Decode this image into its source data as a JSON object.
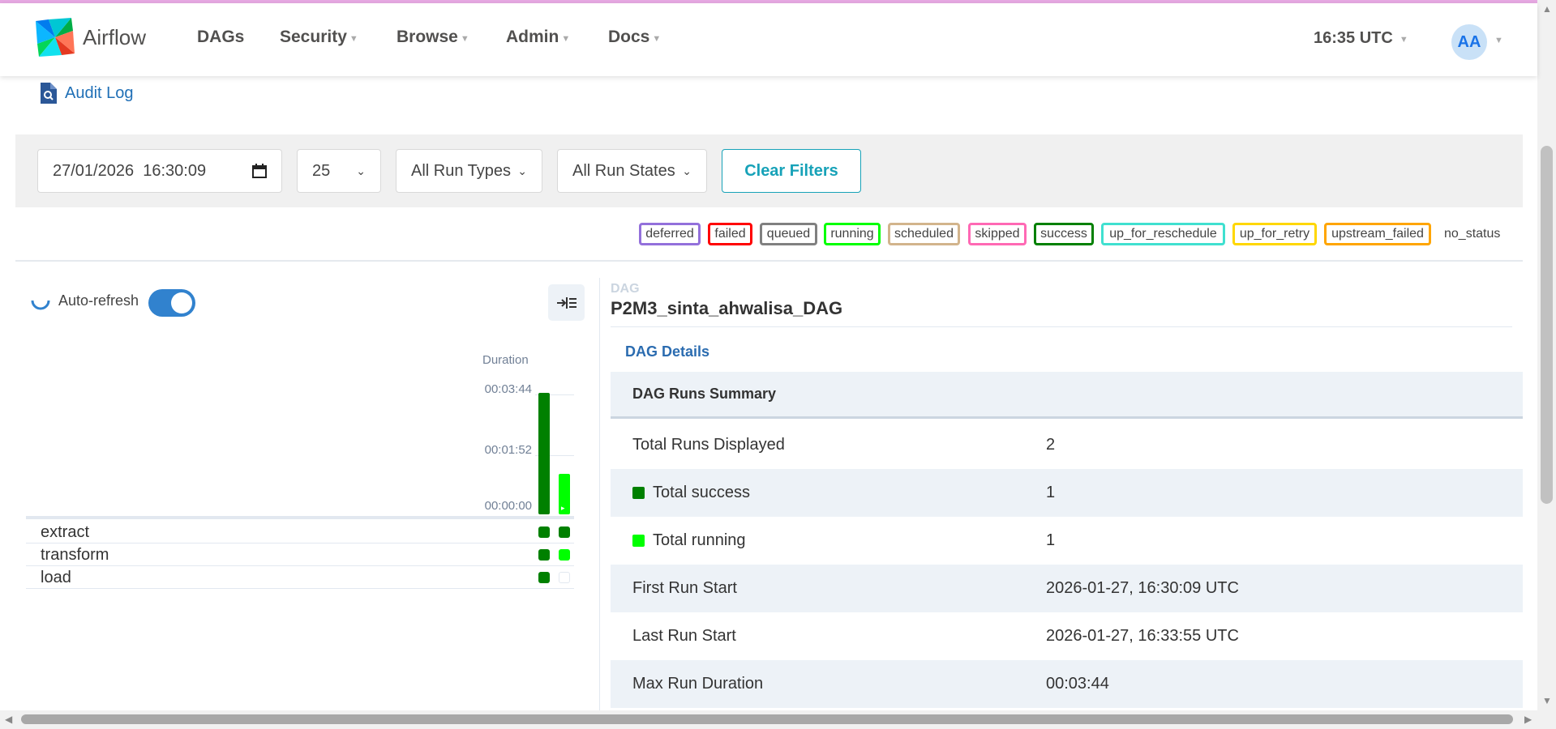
{
  "navbar": {
    "brand": "Airflow",
    "items": [
      {
        "label": "DAGs",
        "dropdown": false
      },
      {
        "label": "Security",
        "dropdown": true
      },
      {
        "label": "Browse",
        "dropdown": true
      },
      {
        "label": "Admin",
        "dropdown": true
      },
      {
        "label": "Docs",
        "dropdown": true
      }
    ],
    "clock": "16:35 UTC",
    "avatar": "AA"
  },
  "audit_log": {
    "label": "Audit Log"
  },
  "filters": {
    "base_date": "27/01/2026  16:30:09",
    "num_runs": "25",
    "run_type": "All Run Types",
    "run_state": "All Run States",
    "clear_label": "Clear Filters"
  },
  "legend": [
    {
      "label": "deferred",
      "color": "#9370db"
    },
    {
      "label": "failed",
      "color": "#ff0000"
    },
    {
      "label": "queued",
      "color": "#808080"
    },
    {
      "label": "running",
      "color": "#00ff00"
    },
    {
      "label": "scheduled",
      "color": "#d2b48c"
    },
    {
      "label": "skipped",
      "color": "#ff69b4"
    },
    {
      "label": "success",
      "color": "#008000"
    },
    {
      "label": "up_for_reschedule",
      "color": "#40e0d0"
    },
    {
      "label": "up_for_retry",
      "color": "#ffd700"
    },
    {
      "label": "upstream_failed",
      "color": "#ffa500"
    },
    {
      "label": "no_status",
      "color": ""
    }
  ],
  "grid": {
    "auto_refresh_label": "Auto-refresh",
    "auto_refresh_on": true,
    "duration_label": "Duration",
    "duration_ticks": [
      "00:03:44",
      "00:01:52",
      "00:00:00"
    ],
    "run_bars": [
      {
        "duration_fraction": 1.0,
        "state": "success",
        "color": "#008000"
      },
      {
        "duration_fraction": 0.33,
        "state": "running",
        "color": "#00ff00"
      }
    ],
    "tasks": [
      {
        "name": "extract",
        "states": [
          "success",
          "success"
        ]
      },
      {
        "name": "transform",
        "states": [
          "success",
          "running"
        ]
      },
      {
        "name": "load",
        "states": [
          "success",
          "none"
        ]
      }
    ]
  },
  "details": {
    "section_label": "DAG",
    "dag_id": "P2M3_sinta_ahwalisa_DAG",
    "tab": "DAG Details",
    "table_header": "DAG Runs Summary",
    "rows": [
      {
        "key": "Total Runs Displayed",
        "value": "2",
        "swatch": ""
      },
      {
        "key": "Total success",
        "value": "1",
        "swatch": "#008000"
      },
      {
        "key": "Total running",
        "value": "1",
        "swatch": "#00ff00"
      },
      {
        "key": "First Run Start",
        "value": "2026-01-27, 16:30:09 UTC",
        "swatch": ""
      },
      {
        "key": "Last Run Start",
        "value": "2026-01-27, 16:33:55 UTC",
        "swatch": ""
      },
      {
        "key": "Max Run Duration",
        "value": "00:03:44",
        "swatch": ""
      }
    ]
  },
  "state_colors": {
    "success": "#008000",
    "running": "#00ff00",
    "none": "#ffffff"
  }
}
